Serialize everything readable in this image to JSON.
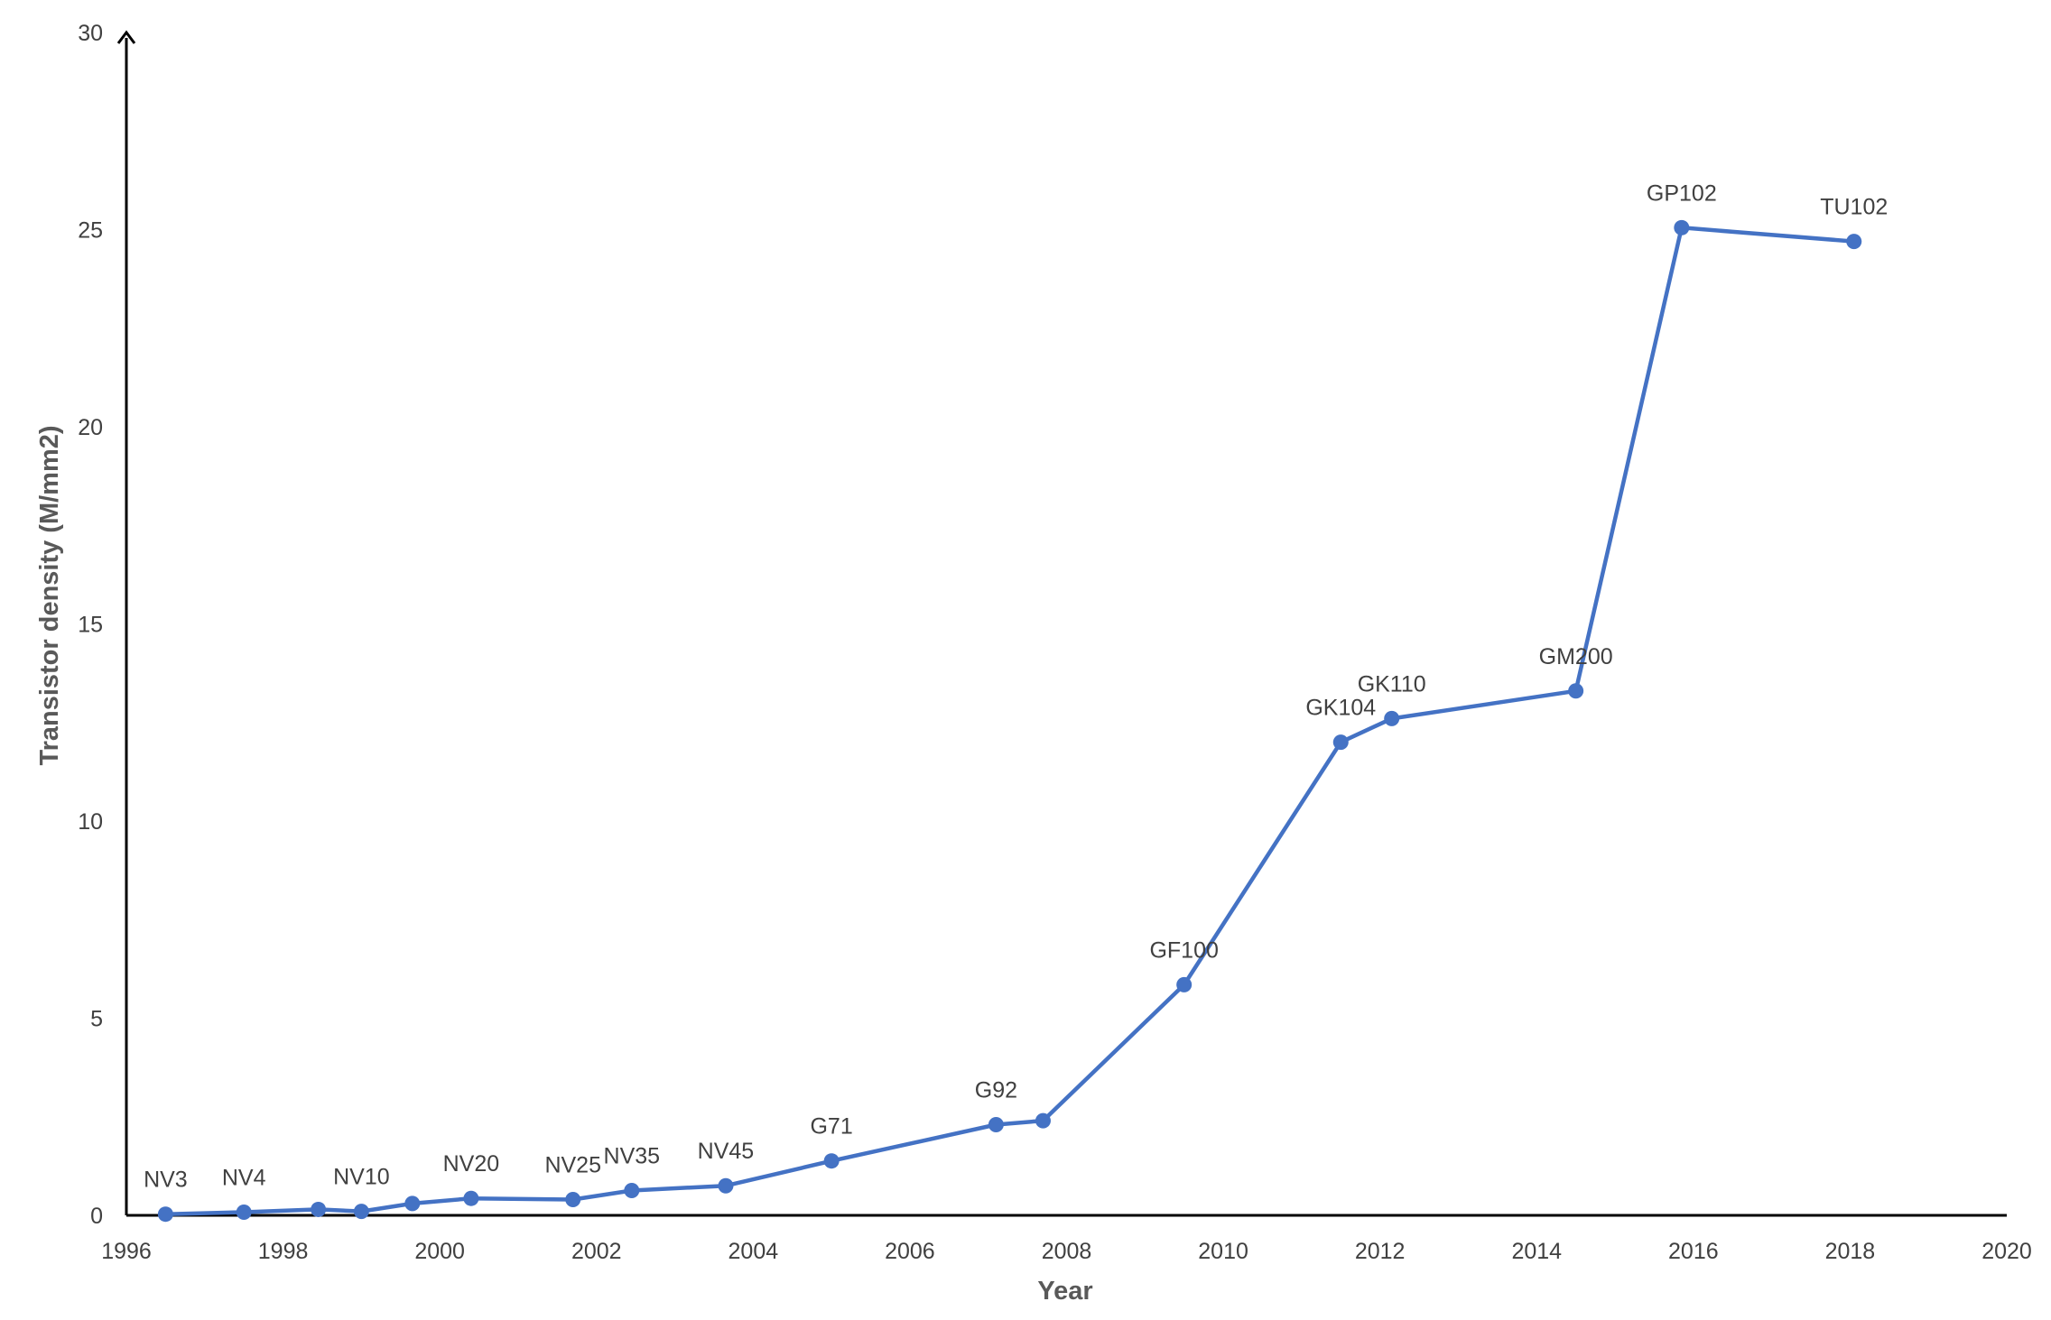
{
  "chart_data": {
    "type": "line",
    "title": "",
    "xlabel": "Year",
    "ylabel": "Transistor density (M/mm2)",
    "xlim": [
      1996,
      2020
    ],
    "ylim": [
      0,
      30
    ],
    "xticks": [
      1996,
      1998,
      2000,
      2002,
      2004,
      2006,
      2008,
      2010,
      2012,
      2014,
      2016,
      2018,
      2020
    ],
    "yticks": [
      0,
      5,
      10,
      15,
      20,
      25,
      30
    ],
    "grid": false,
    "legend": "none",
    "colors": {
      "series": "#4472c4",
      "axis": "#000000",
      "text": "#404040"
    },
    "series": [
      {
        "points": [
          {
            "x": 1996.5,
            "y": 0.03,
            "label": "NV3"
          },
          {
            "x": 1997.5,
            "y": 0.08,
            "label": "NV4"
          },
          {
            "x": 1998.45,
            "y": 0.15,
            "label": ""
          },
          {
            "x": 1999.0,
            "y": 0.1,
            "label": "NV10"
          },
          {
            "x": 1999.65,
            "y": 0.3,
            "label": ""
          },
          {
            "x": 2000.4,
            "y": 0.43,
            "label": "NV20"
          },
          {
            "x": 2001.7,
            "y": 0.4,
            "label": "NV25"
          },
          {
            "x": 2002.45,
            "y": 0.63,
            "label": "NV35"
          },
          {
            "x": 2003.65,
            "y": 0.75,
            "label": "NV45"
          },
          {
            "x": 2005.0,
            "y": 1.38,
            "label": "G71"
          },
          {
            "x": 2007.1,
            "y": 2.3,
            "label": "G92"
          },
          {
            "x": 2007.7,
            "y": 2.4,
            "label": ""
          },
          {
            "x": 2009.5,
            "y": 5.85,
            "label": "GF100"
          },
          {
            "x": 2011.5,
            "y": 12.0,
            "label": "GK104"
          },
          {
            "x": 2012.15,
            "y": 12.6,
            "label": "GK110"
          },
          {
            "x": 2014.5,
            "y": 13.3,
            "label": "GM200"
          },
          {
            "x": 2015.85,
            "y": 25.05,
            "label": "GP102"
          },
          {
            "x": 2018.05,
            "y": 24.7,
            "label": "TU102"
          }
        ]
      }
    ]
  }
}
